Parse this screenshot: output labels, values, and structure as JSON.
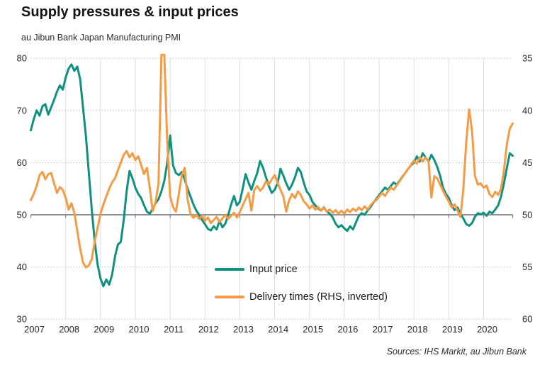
{
  "header": {
    "title": "Supply pressures & input prices",
    "subtitle": "au Jibun Bank Japan Manufacturing PMI"
  },
  "footer": {
    "source": "Sources: IHS Markit, au Jibun Bank"
  },
  "legend": {
    "items": [
      {
        "label": "Input price",
        "color": "#0f9080"
      },
      {
        "label": "Delivery times (RHS, inverted)",
        "color": "#f59b45"
      }
    ]
  },
  "colors": {
    "input_price": "#0f9080",
    "delivery_times": "#f59b45",
    "baseline_50": "#808080",
    "gridline": "#c4c4c4",
    "vertical_gridline": "#dcdcdc"
  },
  "chart_data": {
    "type": "line",
    "title": "Supply pressures & input prices",
    "subtitle": "au Jibun Bank Japan Manufacturing PMI",
    "x_start": "2007-01",
    "frequency": "monthly",
    "x_tick_labels": [
      "2007",
      "2008",
      "2009",
      "2010",
      "2011",
      "2012",
      "2013",
      "2014",
      "2015",
      "2016",
      "2017",
      "2018",
      "2019",
      "2020"
    ],
    "left_axis": {
      "ticks": [
        80,
        70,
        60,
        50,
        40,
        30
      ],
      "range": [
        30,
        80
      ],
      "baseline": 50
    },
    "right_axis": {
      "ticks": [
        35,
        40,
        45,
        50,
        55,
        60
      ],
      "range": [
        35,
        60
      ],
      "inverted": true
    },
    "grid": "horizontal-dotted and vertical-year-lines",
    "legend_position": "inside-bottom-center",
    "series": [
      {
        "name": "Input price",
        "axis": "left",
        "color": "#0f9080",
        "values": [
          66.2,
          68.3,
          70.0,
          69.0,
          70.8,
          71.2,
          69.2,
          70.6,
          72.0,
          73.6,
          74.8,
          74.0,
          76.3,
          78.0,
          78.8,
          77.6,
          78.4,
          76.0,
          70.5,
          65.0,
          58.0,
          51.0,
          45.0,
          40.5,
          37.8,
          36.3,
          37.6,
          36.6,
          38.5,
          42.0,
          44.3,
          44.8,
          49.0,
          54.5,
          58.4,
          57.0,
          55.2,
          54.0,
          53.2,
          51.8,
          50.6,
          50.2,
          51.2,
          52.2,
          53.0,
          54.5,
          56.5,
          60.0,
          65.2,
          59.5,
          58.0,
          57.6,
          58.2,
          56.8,
          55.0,
          53.5,
          52.0,
          50.8,
          50.0,
          49.0,
          48.2,
          47.3,
          47.0,
          47.8,
          47.2,
          48.8,
          47.6,
          48.3,
          50.0,
          52.0,
          53.6,
          51.8,
          52.5,
          55.0,
          57.8,
          56.2,
          54.8,
          56.5,
          58.0,
          60.3,
          59.0,
          57.2,
          55.5,
          54.2,
          54.8,
          56.0,
          58.8,
          57.5,
          56.0,
          54.8,
          55.8,
          57.2,
          59.0,
          58.2,
          56.2,
          54.5,
          53.8,
          52.5,
          51.8,
          51.2,
          50.8,
          51.4,
          50.6,
          50.2,
          49.5,
          48.3,
          47.6,
          48.0,
          47.4,
          46.9,
          47.8,
          47.2,
          48.5,
          49.8,
          50.3,
          50.0,
          50.8,
          51.5,
          52.3,
          53.0,
          53.8,
          54.5,
          55.2,
          54.8,
          55.5,
          56.2,
          55.8,
          56.5,
          57.3,
          58.0,
          58.8,
          59.5,
          60.0,
          61.2,
          60.2,
          61.8,
          61.0,
          60.2,
          61.5,
          60.5,
          59.2,
          57.5,
          55.2,
          54.0,
          53.2,
          51.8,
          50.9,
          51.4,
          50.2,
          49.3,
          48.2,
          47.9,
          48.4,
          49.6,
          50.3,
          50.1,
          50.4,
          49.8,
          50.6,
          50.3,
          51.0,
          51.8,
          53.5,
          56.0,
          59.0,
          61.8,
          61.3
        ]
      },
      {
        "name": "Delivery times (RHS, inverted)",
        "axis": "right",
        "color": "#f59b45",
        "values": [
          48.6,
          48.0,
          47.25,
          46.2,
          45.9,
          46.6,
          46.1,
          46.0,
          47.0,
          47.9,
          47.35,
          47.6,
          48.4,
          49.5,
          48.9,
          49.8,
          51.5,
          53.25,
          54.6,
          55.05,
          54.85,
          54.25,
          52.6,
          51.25,
          49.9,
          49.0,
          48.25,
          47.5,
          46.9,
          46.5,
          45.75,
          45.0,
          44.25,
          43.9,
          44.5,
          44.1,
          44.75,
          44.4,
          45.25,
          46.1,
          45.5,
          47.5,
          49.65,
          48.75,
          47.0,
          34.65,
          34.65,
          43.0,
          48.25,
          49.25,
          49.7,
          48.0,
          46.2,
          45.5,
          48.5,
          49.9,
          50.3,
          50.0,
          50.4,
          50.1,
          50.6,
          50.25,
          50.8,
          50.5,
          50.2,
          50.7,
          50.35,
          50.0,
          50.4,
          50.1,
          49.8,
          50.25,
          49.75,
          49.1,
          48.5,
          47.9,
          49.6,
          47.6,
          47.25,
          47.7,
          47.4,
          46.8,
          47.1,
          46.6,
          46.2,
          46.9,
          47.6,
          48.25,
          49.7,
          48.6,
          48.0,
          48.4,
          47.75,
          48.1,
          48.7,
          49.0,
          49.4,
          49.1,
          49.5,
          49.25,
          49.6,
          49.35,
          49.7,
          49.5,
          49.8,
          49.55,
          49.9,
          49.6,
          49.9,
          49.5,
          49.75,
          49.4,
          49.65,
          49.3,
          49.55,
          49.2,
          49.5,
          49.1,
          48.8,
          48.6,
          48.25,
          47.9,
          48.2,
          47.75,
          47.4,
          47.6,
          47.2,
          46.8,
          46.4,
          46.0,
          45.6,
          45.2,
          44.8,
          45.1,
          44.5,
          44.9,
          44.5,
          44.85,
          48.35,
          46.3,
          46.5,
          47.1,
          47.7,
          48.25,
          48.75,
          49.3,
          49.0,
          49.6,
          50.2,
          47.5,
          43.0,
          39.9,
          42.0,
          46.25,
          47.1,
          47.0,
          47.4,
          47.2,
          48.0,
          48.3,
          47.8,
          48.1,
          47.5,
          45.75,
          43.25,
          41.75,
          41.25
        ]
      }
    ]
  }
}
